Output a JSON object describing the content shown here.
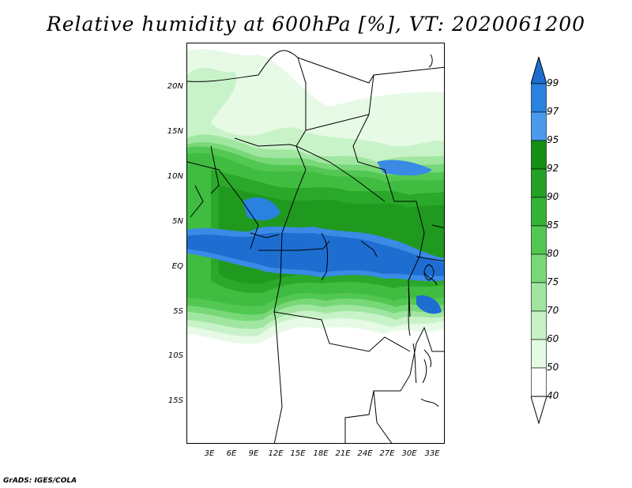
{
  "title": "Relative humidity at 600hPa [%], VT: 2020061200",
  "footer": "GrADS: IGES/COLA",
  "lat_labels": [
    "20N",
    "15N",
    "10N",
    "5N",
    "EQ",
    "5S",
    "10S",
    "15S"
  ],
  "lon_labels": [
    "3E",
    "6E",
    "9E",
    "12E",
    "15E",
    "18E",
    "21E",
    "24E",
    "27E",
    "30E",
    "33E"
  ],
  "colorbar": {
    "levels": [
      "99",
      "97",
      "95",
      "92",
      "90",
      "85",
      "80",
      "75",
      "70",
      "60",
      "50",
      "40"
    ],
    "colors": [
      "#1e6ed2",
      "#2a82e0",
      "#4a9aee",
      "#139012",
      "#24a024",
      "#34b434",
      "#52c852",
      "#78d878",
      "#a0e6a0",
      "#c6f2c6",
      "#e4fae4",
      "#ffffff"
    ],
    "top_color": "#1e6ed2",
    "bottom_color": "#ffffff"
  },
  "palette": {
    "dark_blue": "#1e6ed2",
    "mid_blue": "#3a8ae6",
    "dark_green": "#1f9a1f",
    "green": "#40bc40",
    "light_green": "#86dc86",
    "pale_green": "#c8f2c8",
    "very_pale_green": "#e6fae6",
    "border": "#000000"
  }
}
